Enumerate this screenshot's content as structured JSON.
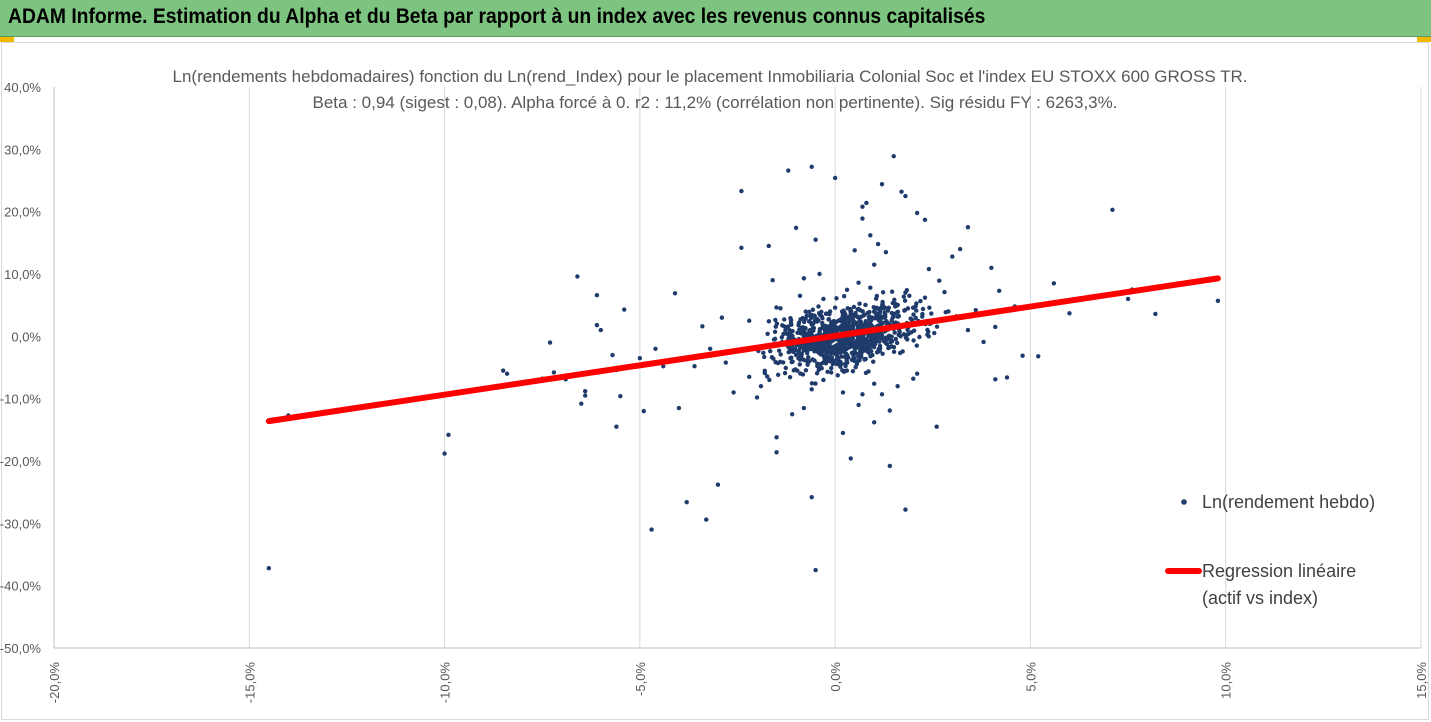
{
  "header": {
    "title": "ADAM Informe. Estimation du Alpha et du Beta par rapport à un index avec les revenus connus capitalisés",
    "accent": "#7cc47f",
    "corner_color": "#f2b800"
  },
  "chart_data": {
    "type": "scatter",
    "title": "Ln(rendements hebdomadaires) fonction du Ln(rend_Index) pour le placement Inmobiliaria Colonial Soc et l'index EU STOXX 600 GROSS TR.",
    "subtitle": "Beta : 0,94 (sigest : 0,08). Alpha forcé à 0. r2 : 11,2% (corrélation non pertinente). Sig résidu FY : 6263,3%.",
    "xlabel": "",
    "ylabel": "",
    "xlim": [
      -20,
      15
    ],
    "ylim": [
      -50,
      40
    ],
    "x_ticks": [
      "-20,0%",
      "-15,0%",
      "-10,0%",
      "-5,0%",
      "0,0%",
      "5,0%",
      "10,0%",
      "15,0%"
    ],
    "y_ticks": [
      "40,0%",
      "30,0%",
      "20,0%",
      "10,0%",
      "0,0%",
      "-10,0%",
      "-20,0%",
      "-30,0%",
      "-40,0%",
      "-50,0%"
    ],
    "grid": "vertical",
    "legend_position": "right",
    "series": [
      {
        "name": "Ln(rendement hebdo)",
        "kind": "points",
        "color": "#1f3b6b",
        "points": [
          [
            -14.5,
            -37.2
          ],
          [
            -14.0,
            -12.7
          ],
          [
            -10.0,
            -18.8
          ],
          [
            -9.9,
            -15.8
          ],
          [
            -8.5,
            -5.5
          ],
          [
            -8.4,
            -6.0
          ],
          [
            -7.5,
            -6.8
          ],
          [
            -7.3,
            -1.0
          ],
          [
            -7.2,
            -5.8
          ],
          [
            -6.9,
            -6.9
          ],
          [
            -6.6,
            9.6
          ],
          [
            -6.5,
            -10.8
          ],
          [
            -6.4,
            -9.5
          ],
          [
            -6.4,
            -8.8
          ],
          [
            -6.1,
            6.6
          ],
          [
            -6.1,
            1.8
          ],
          [
            -6.0,
            1.0
          ],
          [
            -5.7,
            -3.0
          ],
          [
            -5.6,
            -5.4
          ],
          [
            -5.6,
            -14.5
          ],
          [
            -5.5,
            -9.6
          ],
          [
            -5.4,
            4.3
          ],
          [
            -5.3,
            -5.0
          ],
          [
            -5.0,
            -3.5
          ],
          [
            -4.9,
            -12.0
          ],
          [
            -4.7,
            -31.0
          ],
          [
            -4.6,
            -2.0
          ],
          [
            -4.4,
            -4.8
          ],
          [
            -4.1,
            6.9
          ],
          [
            -4.0,
            -11.5
          ],
          [
            -3.8,
            -26.6
          ],
          [
            -3.6,
            -4.8
          ],
          [
            -3.3,
            -29.4
          ],
          [
            -3.0,
            -23.8
          ],
          [
            -2.8,
            -4.2
          ],
          [
            -2.6,
            -9.0
          ],
          [
            -2.4,
            23.3
          ],
          [
            -2.4,
            14.2
          ],
          [
            -2.2,
            -6.5
          ],
          [
            -2.0,
            -9.8
          ],
          [
            -1.8,
            -5.9
          ],
          [
            -1.7,
            14.5
          ],
          [
            -1.6,
            9.0
          ],
          [
            -1.5,
            -18.6
          ],
          [
            -1.5,
            -16.2
          ],
          [
            -1.2,
            26.6
          ],
          [
            -1.1,
            -12.5
          ],
          [
            -1.0,
            17.4
          ],
          [
            -0.8,
            9.3
          ],
          [
            -0.8,
            -11.5
          ],
          [
            -0.7,
            -4.0
          ],
          [
            -0.6,
            -25.8
          ],
          [
            -0.6,
            -2.0
          ],
          [
            -0.5,
            15.5
          ],
          [
            -0.4,
            10.0
          ],
          [
            -0.3,
            -7.0
          ],
          [
            -0.1,
            -5.1
          ],
          [
            0.0,
            4.6
          ],
          [
            0.0,
            25.4
          ],
          [
            -0.1,
            -5.8
          ],
          [
            0.2,
            -15.5
          ],
          [
            0.3,
            -5.5
          ],
          [
            0.4,
            -19.6
          ],
          [
            0.5,
            13.8
          ],
          [
            0.6,
            -11.0
          ],
          [
            0.7,
            -9.3
          ],
          [
            0.7,
            18.9
          ],
          [
            0.7,
            20.8
          ],
          [
            0.8,
            21.4
          ],
          [
            0.9,
            16.2
          ],
          [
            1.0,
            -13.8
          ],
          [
            1.0,
            11.5
          ],
          [
            1.1,
            14.8
          ],
          [
            1.2,
            24.4
          ],
          [
            1.2,
            -9.3
          ],
          [
            1.3,
            13.5
          ],
          [
            1.4,
            -20.8
          ],
          [
            1.4,
            -11.9
          ],
          [
            1.5,
            28.9
          ],
          [
            1.6,
            -8.0
          ],
          [
            1.7,
            23.2
          ],
          [
            1.8,
            22.5
          ],
          [
            1.8,
            -27.8
          ],
          [
            1.9,
            6.5
          ],
          [
            2.1,
            19.8
          ],
          [
            2.1,
            -6.0
          ],
          [
            2.3,
            18.7
          ],
          [
            2.4,
            10.8
          ],
          [
            2.6,
            -14.5
          ],
          [
            2.8,
            7.1
          ],
          [
            3.0,
            12.8
          ],
          [
            3.2,
            14.0
          ],
          [
            3.4,
            17.5
          ],
          [
            3.4,
            1.0
          ],
          [
            3.6,
            4.2
          ],
          [
            3.8,
            -0.9
          ],
          [
            4.0,
            11.0
          ],
          [
            4.1,
            -6.9
          ],
          [
            4.2,
            7.3
          ],
          [
            4.4,
            -6.6
          ],
          [
            4.6,
            4.8
          ],
          [
            4.8,
            -3.1
          ],
          [
            5.1,
            4.8
          ],
          [
            5.2,
            -3.2
          ],
          [
            5.6,
            8.5
          ],
          [
            6.0,
            3.7
          ],
          [
            7.1,
            20.3
          ],
          [
            7.5,
            6.0
          ],
          [
            7.6,
            7.5
          ],
          [
            8.2,
            3.6
          ],
          [
            9.8,
            5.7
          ],
          [
            -0.5,
            -37.5
          ],
          [
            -0.6,
            27.2
          ],
          [
            0.6,
            8.6
          ],
          [
            -1.4,
            4.5
          ],
          [
            2.3,
            6.2
          ],
          [
            -2.9,
            3.0
          ],
          [
            3.1,
            3.2
          ],
          [
            -3.4,
            1.6
          ],
          [
            4.1,
            1.5
          ],
          [
            -0.3,
            6.0
          ],
          [
            0.9,
            7.8
          ],
          [
            1.8,
            7.0
          ],
          [
            -0.9,
            6.5
          ],
          [
            -2.2,
            2.5
          ],
          [
            2.9,
            4.0
          ],
          [
            -3.2,
            -2.0
          ],
          [
            -1.9,
            -8.0
          ],
          [
            0.2,
            -9.0
          ],
          [
            1.0,
            -7.6
          ],
          [
            2.0,
            -6.8
          ],
          [
            -0.6,
            -8.5
          ]
        ]
      },
      {
        "name": "Regression linéaire\n(actif vs index)",
        "kind": "line",
        "color": "#ff0000",
        "points": [
          [
            -14.5,
            -13.6
          ],
          [
            9.8,
            9.3
          ]
        ]
      }
    ]
  }
}
